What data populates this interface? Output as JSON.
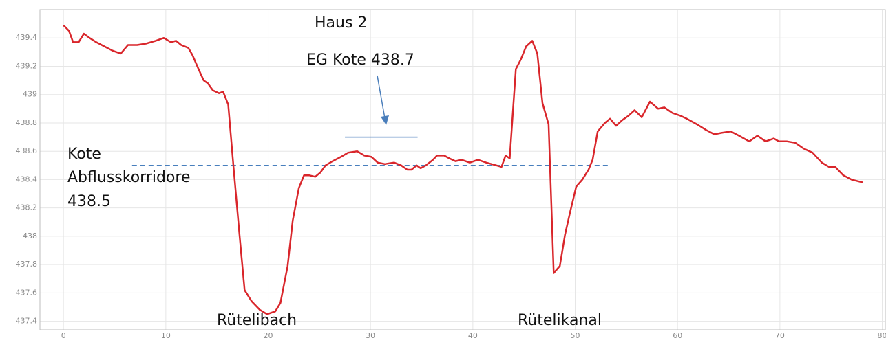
{
  "chart_data": {
    "type": "line",
    "x": [
      0,
      0.54,
      0.94,
      1.48,
      2.0,
      2.55,
      3.2,
      4.0,
      4.8,
      5.6,
      6.3,
      7.2,
      8.05,
      9.0,
      9.8,
      10.5,
      11.0,
      11.5,
      12.2,
      12.6,
      13.2,
      13.7,
      14.1,
      14.6,
      15.2,
      15.6,
      16.1,
      16.6,
      17.2,
      17.7,
      18.4,
      19.2,
      19.9,
      20.7,
      21.2,
      21.9,
      22.4,
      23.0,
      23.5,
      24.0,
      24.6,
      25.1,
      25.6,
      26.3,
      27.1,
      27.8,
      28.7,
      29.4,
      30.1,
      30.7,
      31.4,
      32.3,
      33.0,
      33.6,
      34.0,
      34.5,
      34.9,
      35.4,
      36.1,
      36.5,
      37.2,
      37.7,
      38.3,
      38.9,
      39.7,
      40.5,
      41.3,
      42.3,
      42.8,
      43.2,
      43.6,
      44.2,
      44.7,
      45.2,
      45.8,
      46.3,
      46.8,
      47.4,
      47.9,
      48.5,
      49.0,
      49.5,
      50.1,
      50.7,
      51.3,
      51.7,
      52.2,
      52.9,
      53.4,
      54.0,
      54.6,
      55.2,
      55.8,
      56.5,
      57.3,
      58.1,
      58.7,
      59.5,
      60.3,
      60.9,
      61.9,
      62.8,
      63.6,
      64.3,
      65.2,
      66.0,
      67.0,
      67.8,
      68.6,
      69.4,
      69.9,
      70.7,
      71.5,
      72.3,
      73.2,
      74.1,
      74.8,
      75.4,
      76.2,
      77.0,
      78.1
    ],
    "series": [
      {
        "color": "#d9262b",
        "values": [
          439.49,
          439.45,
          439.37,
          439.37,
          439.43,
          439.4,
          439.37,
          439.34,
          439.31,
          439.29,
          439.35,
          439.35,
          439.36,
          439.38,
          439.4,
          439.37,
          439.38,
          439.35,
          439.33,
          439.28,
          439.18,
          439.1,
          439.08,
          439.03,
          439.01,
          439.02,
          438.93,
          438.5,
          438.01,
          437.62,
          437.54,
          437.48,
          437.45,
          437.47,
          437.53,
          437.79,
          438.11,
          438.34,
          438.43,
          438.43,
          438.42,
          438.45,
          438.5,
          438.53,
          438.56,
          438.59,
          438.6,
          438.57,
          438.56,
          438.52,
          438.51,
          438.52,
          438.5,
          438.47,
          438.47,
          438.5,
          438.48,
          438.5,
          438.54,
          438.57,
          438.57,
          438.55,
          438.53,
          438.54,
          438.52,
          438.54,
          438.52,
          438.5,
          438.49,
          438.57,
          438.55,
          439.18,
          439.25,
          439.34,
          439.38,
          439.29,
          438.94,
          438.79,
          437.74,
          437.79,
          438.01,
          438.17,
          438.35,
          438.4,
          438.47,
          438.54,
          438.74,
          438.8,
          438.83,
          438.78,
          438.82,
          438.85,
          438.89,
          438.84,
          438.95,
          438.9,
          438.91,
          438.87,
          438.85,
          438.83,
          438.79,
          438.75,
          438.72,
          438.73,
          438.74,
          438.71,
          438.67,
          438.71,
          438.67,
          438.69,
          438.67,
          438.67,
          438.66,
          438.62,
          438.59,
          438.52,
          438.49,
          438.49,
          438.43,
          438.4,
          438.38
        ]
      }
    ],
    "xlim": [
      -2.3,
      80.3
    ],
    "ylim": [
      437.34,
      439.6
    ],
    "xticks": [
      0,
      10,
      20,
      30,
      40,
      50,
      60,
      70,
      80
    ],
    "yticks": [
      437.4,
      437.6,
      437.8,
      438,
      438.2,
      438.4,
      438.6,
      438.8,
      439,
      439.2,
      439.4
    ],
    "grid": true,
    "reference_lines": [
      {
        "value": 438.5,
        "x": [
          6.7,
          53.2
        ],
        "color": "#2e6db4",
        "dashed": true
      },
      {
        "value": 438.7,
        "x": [
          27.5,
          34.6
        ],
        "color": "#4a7ebb",
        "dashed": false
      }
    ],
    "annotations": [
      "Haus 2",
      "EG Kote 438.7",
      "Kote",
      "Abflusskorridore",
      "438.5",
      "Rütelibach",
      "Rütelikanal"
    ]
  }
}
